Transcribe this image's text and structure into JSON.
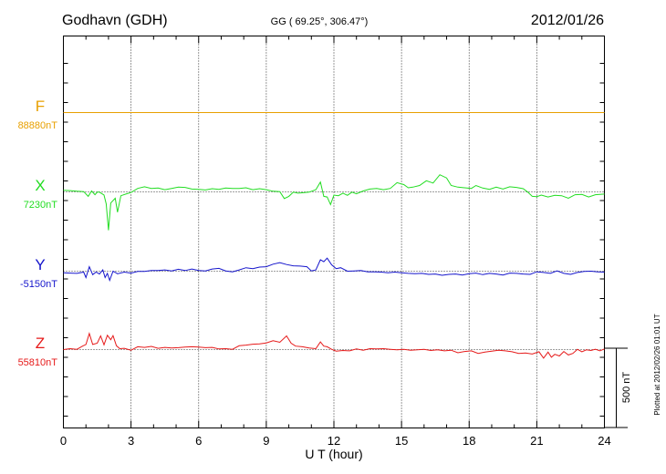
{
  "chart_data": {
    "type": "line",
    "station": "Godhavn (GDH)",
    "coords": "GG ( 69.25°, 306.47°)",
    "date": "2012/01/26",
    "xlabel": "U T (hour)",
    "xlim": [
      0,
      24
    ],
    "x_ticks": [
      "0",
      "3",
      "6",
      "9",
      "12",
      "15",
      "18",
      "21",
      "24"
    ],
    "scale_label": "500 nT",
    "scale_nT": 500,
    "footer": "Plotted at 2012/02/26 01:01 UT",
    "colors": {
      "F": "#e8a000",
      "X": "#22dd22",
      "Y": "#1515cc",
      "Z": "#e61a1a"
    },
    "series": [
      {
        "name": "F",
        "baseline_label": "88880nT",
        "baseline_nT": 88880,
        "points": [
          [
            0,
            0
          ],
          [
            24,
            0
          ]
        ]
      },
      {
        "name": "X",
        "baseline_label": "7230nT",
        "baseline_nT": 7230,
        "points": [
          [
            0,
            10
          ],
          [
            0.3,
            8
          ],
          [
            0.6,
            4
          ],
          [
            0.9,
            2
          ],
          [
            1.1,
            -28
          ],
          [
            1.25,
            6
          ],
          [
            1.4,
            -18
          ],
          [
            1.5,
            -2
          ],
          [
            1.6,
            -2
          ],
          [
            1.8,
            -20
          ],
          [
            1.9,
            -75
          ],
          [
            2.0,
            -242
          ],
          [
            2.1,
            -70
          ],
          [
            2.3,
            -40
          ],
          [
            2.4,
            -128
          ],
          [
            2.55,
            -24
          ],
          [
            2.8,
            -12
          ],
          [
            3.0,
            -4
          ],
          [
            3.3,
            22
          ],
          [
            3.6,
            32
          ],
          [
            3.9,
            22
          ],
          [
            4.2,
            24
          ],
          [
            4.5,
            14
          ],
          [
            4.8,
            22
          ],
          [
            5.1,
            30
          ],
          [
            5.4,
            28
          ],
          [
            5.7,
            18
          ],
          [
            6.0,
            16
          ],
          [
            6.3,
            12
          ],
          [
            6.6,
            20
          ],
          [
            6.9,
            16
          ],
          [
            7.2,
            24
          ],
          [
            7.5,
            22
          ],
          [
            7.8,
            22
          ],
          [
            8.1,
            26
          ],
          [
            8.4,
            14
          ],
          [
            8.7,
            20
          ],
          [
            9.0,
            14
          ],
          [
            9.3,
            4
          ],
          [
            9.6,
            2
          ],
          [
            9.8,
            -42
          ],
          [
            10.0,
            -28
          ],
          [
            10.2,
            -2
          ],
          [
            10.4,
            -8
          ],
          [
            10.6,
            -6
          ],
          [
            10.9,
            -2
          ],
          [
            11.2,
            14
          ],
          [
            11.4,
            62
          ],
          [
            11.55,
            -28
          ],
          [
            11.7,
            -32
          ],
          [
            11.85,
            -80
          ],
          [
            12.0,
            -20
          ],
          [
            12.2,
            -24
          ],
          [
            12.4,
            -8
          ],
          [
            12.6,
            -22
          ],
          [
            12.8,
            -2
          ],
          [
            13.0,
            -12
          ],
          [
            13.3,
            6
          ],
          [
            13.6,
            18
          ],
          [
            13.9,
            22
          ],
          [
            14.2,
            14
          ],
          [
            14.5,
            22
          ],
          [
            14.8,
            58
          ],
          [
            15.1,
            46
          ],
          [
            15.3,
            26
          ],
          [
            15.5,
            30
          ],
          [
            15.8,
            40
          ],
          [
            16.1,
            70
          ],
          [
            16.4,
            56
          ],
          [
            16.7,
            108
          ],
          [
            17.0,
            88
          ],
          [
            17.2,
            40
          ],
          [
            17.5,
            30
          ],
          [
            17.8,
            26
          ],
          [
            18.1,
            22
          ],
          [
            18.3,
            40
          ],
          [
            18.6,
            24
          ],
          [
            18.9,
            16
          ],
          [
            19.2,
            30
          ],
          [
            19.5,
            18
          ],
          [
            19.8,
            32
          ],
          [
            20.1,
            28
          ],
          [
            20.4,
            20
          ],
          [
            20.6,
            -2
          ],
          [
            20.8,
            -28
          ],
          [
            21.0,
            -30
          ],
          [
            21.2,
            -20
          ],
          [
            21.5,
            -32
          ],
          [
            21.8,
            -22
          ],
          [
            22.1,
            -24
          ],
          [
            22.4,
            -40
          ],
          [
            22.7,
            -18
          ],
          [
            23.0,
            -16
          ],
          [
            23.3,
            -32
          ],
          [
            23.6,
            -18
          ],
          [
            24,
            -14
          ]
        ]
      },
      {
        "name": "Y",
        "baseline_label": "-5150nT",
        "baseline_nT": -5150,
        "points": [
          [
            0,
            -10
          ],
          [
            0.3,
            -12
          ],
          [
            0.6,
            -14
          ],
          [
            0.9,
            -6
          ],
          [
            1.0,
            -40
          ],
          [
            1.15,
            28
          ],
          [
            1.3,
            -22
          ],
          [
            1.45,
            -6
          ],
          [
            1.6,
            -18
          ],
          [
            1.75,
            8
          ],
          [
            1.85,
            -40
          ],
          [
            1.95,
            -14
          ],
          [
            2.05,
            -58
          ],
          [
            2.2,
            0
          ],
          [
            2.4,
            -16
          ],
          [
            2.7,
            -6
          ],
          [
            3.0,
            -12
          ],
          [
            3.3,
            -2
          ],
          [
            3.6,
            -2
          ],
          [
            3.9,
            4
          ],
          [
            4.2,
            4
          ],
          [
            4.5,
            8
          ],
          [
            4.8,
            2
          ],
          [
            5.1,
            12
          ],
          [
            5.4,
            4
          ],
          [
            5.7,
            14
          ],
          [
            6.0,
            4
          ],
          [
            6.3,
            2
          ],
          [
            6.6,
            14
          ],
          [
            6.9,
            18
          ],
          [
            7.2,
            2
          ],
          [
            7.5,
            -4
          ],
          [
            7.8,
            8
          ],
          [
            8.1,
            22
          ],
          [
            8.4,
            16
          ],
          [
            8.7,
            26
          ],
          [
            9.0,
            28
          ],
          [
            9.3,
            44
          ],
          [
            9.6,
            54
          ],
          [
            9.9,
            42
          ],
          [
            10.2,
            34
          ],
          [
            10.5,
            32
          ],
          [
            10.8,
            28
          ],
          [
            11.0,
            2
          ],
          [
            11.2,
            8
          ],
          [
            11.4,
            72
          ],
          [
            11.55,
            60
          ],
          [
            11.7,
            82
          ],
          [
            11.9,
            40
          ],
          [
            12.1,
            16
          ],
          [
            12.3,
            22
          ],
          [
            12.6,
            0
          ],
          [
            12.9,
            2
          ],
          [
            13.2,
            4
          ],
          [
            13.5,
            -4
          ],
          [
            13.8,
            -4
          ],
          [
            14.1,
            -6
          ],
          [
            14.4,
            -10
          ],
          [
            14.7,
            -6
          ],
          [
            15.0,
            -10
          ],
          [
            15.3,
            -14
          ],
          [
            15.6,
            -16
          ],
          [
            15.9,
            -14
          ],
          [
            16.2,
            -20
          ],
          [
            16.5,
            -18
          ],
          [
            16.8,
            -26
          ],
          [
            17.1,
            -20
          ],
          [
            17.4,
            -18
          ],
          [
            17.7,
            -24
          ],
          [
            18.0,
            -16
          ],
          [
            18.3,
            -12
          ],
          [
            18.6,
            -22
          ],
          [
            18.9,
            -14
          ],
          [
            19.2,
            -18
          ],
          [
            19.5,
            -24
          ],
          [
            19.8,
            -12
          ],
          [
            20.1,
            -14
          ],
          [
            20.4,
            -18
          ],
          [
            20.7,
            -20
          ],
          [
            21.0,
            -4
          ],
          [
            21.3,
            -8
          ],
          [
            21.6,
            -14
          ],
          [
            21.9,
            2
          ],
          [
            22.2,
            -14
          ],
          [
            22.5,
            -20
          ],
          [
            22.8,
            -8
          ],
          [
            23.1,
            -2
          ],
          [
            23.4,
            0
          ],
          [
            23.7,
            -4
          ],
          [
            24,
            -6
          ]
        ]
      },
      {
        "name": "Z",
        "baseline_label": "55810nT",
        "baseline_nT": 55810,
        "points": [
          [
            0,
            0
          ],
          [
            0.3,
            6
          ],
          [
            0.6,
            2
          ],
          [
            0.85,
            22
          ],
          [
            1.0,
            32
          ],
          [
            1.15,
            102
          ],
          [
            1.3,
            32
          ],
          [
            1.5,
            40
          ],
          [
            1.65,
            86
          ],
          [
            1.8,
            30
          ],
          [
            1.95,
            90
          ],
          [
            2.1,
            62
          ],
          [
            2.2,
            88
          ],
          [
            2.35,
            24
          ],
          [
            2.5,
            6
          ],
          [
            2.7,
            8
          ],
          [
            3.0,
            -4
          ],
          [
            3.3,
            18
          ],
          [
            3.6,
            14
          ],
          [
            3.9,
            20
          ],
          [
            4.2,
            8
          ],
          [
            4.5,
            14
          ],
          [
            4.8,
            10
          ],
          [
            5.1,
            12
          ],
          [
            5.4,
            16
          ],
          [
            5.7,
            18
          ],
          [
            6.0,
            16
          ],
          [
            6.3,
            12
          ],
          [
            6.6,
            14
          ],
          [
            6.9,
            4
          ],
          [
            7.2,
            6
          ],
          [
            7.5,
            2
          ],
          [
            7.8,
            24
          ],
          [
            8.1,
            28
          ],
          [
            8.4,
            34
          ],
          [
            8.7,
            36
          ],
          [
            9.0,
            42
          ],
          [
            9.3,
            56
          ],
          [
            9.6,
            46
          ],
          [
            9.9,
            86
          ],
          [
            10.1,
            40
          ],
          [
            10.3,
            22
          ],
          [
            10.6,
            18
          ],
          [
            10.9,
            10
          ],
          [
            11.2,
            6
          ],
          [
            11.4,
            48
          ],
          [
            11.55,
            22
          ],
          [
            11.7,
            18
          ],
          [
            11.9,
            2
          ],
          [
            12.1,
            -10
          ],
          [
            12.4,
            -6
          ],
          [
            12.7,
            -8
          ],
          [
            13.0,
            4
          ],
          [
            13.3,
            -4
          ],
          [
            13.6,
            6
          ],
          [
            13.9,
            4
          ],
          [
            14.2,
            6
          ],
          [
            14.5,
            2
          ],
          [
            14.8,
            -2
          ],
          [
            15.1,
            2
          ],
          [
            15.4,
            -4
          ],
          [
            15.7,
            -2
          ],
          [
            16.0,
            2
          ],
          [
            16.3,
            -6
          ],
          [
            16.6,
            -2
          ],
          [
            16.9,
            -8
          ],
          [
            17.2,
            -4
          ],
          [
            17.5,
            -20
          ],
          [
            17.8,
            -12
          ],
          [
            18.1,
            -8
          ],
          [
            18.4,
            -24
          ],
          [
            18.7,
            -16
          ],
          [
            19.0,
            -10
          ],
          [
            19.3,
            -4
          ],
          [
            19.6,
            -8
          ],
          [
            19.9,
            -14
          ],
          [
            20.2,
            -24
          ],
          [
            20.5,
            -22
          ],
          [
            20.8,
            -28
          ],
          [
            21.1,
            -14
          ],
          [
            21.3,
            -54
          ],
          [
            21.5,
            -16
          ],
          [
            21.65,
            -48
          ],
          [
            21.8,
            -30
          ],
          [
            22.0,
            -40
          ],
          [
            22.2,
            -12
          ],
          [
            22.4,
            -34
          ],
          [
            22.6,
            -24
          ],
          [
            22.8,
            2
          ],
          [
            23.0,
            -14
          ],
          [
            23.2,
            -2
          ],
          [
            23.4,
            -6
          ],
          [
            23.6,
            2
          ],
          [
            23.8,
            -8
          ],
          [
            24,
            4
          ]
        ]
      }
    ]
  }
}
